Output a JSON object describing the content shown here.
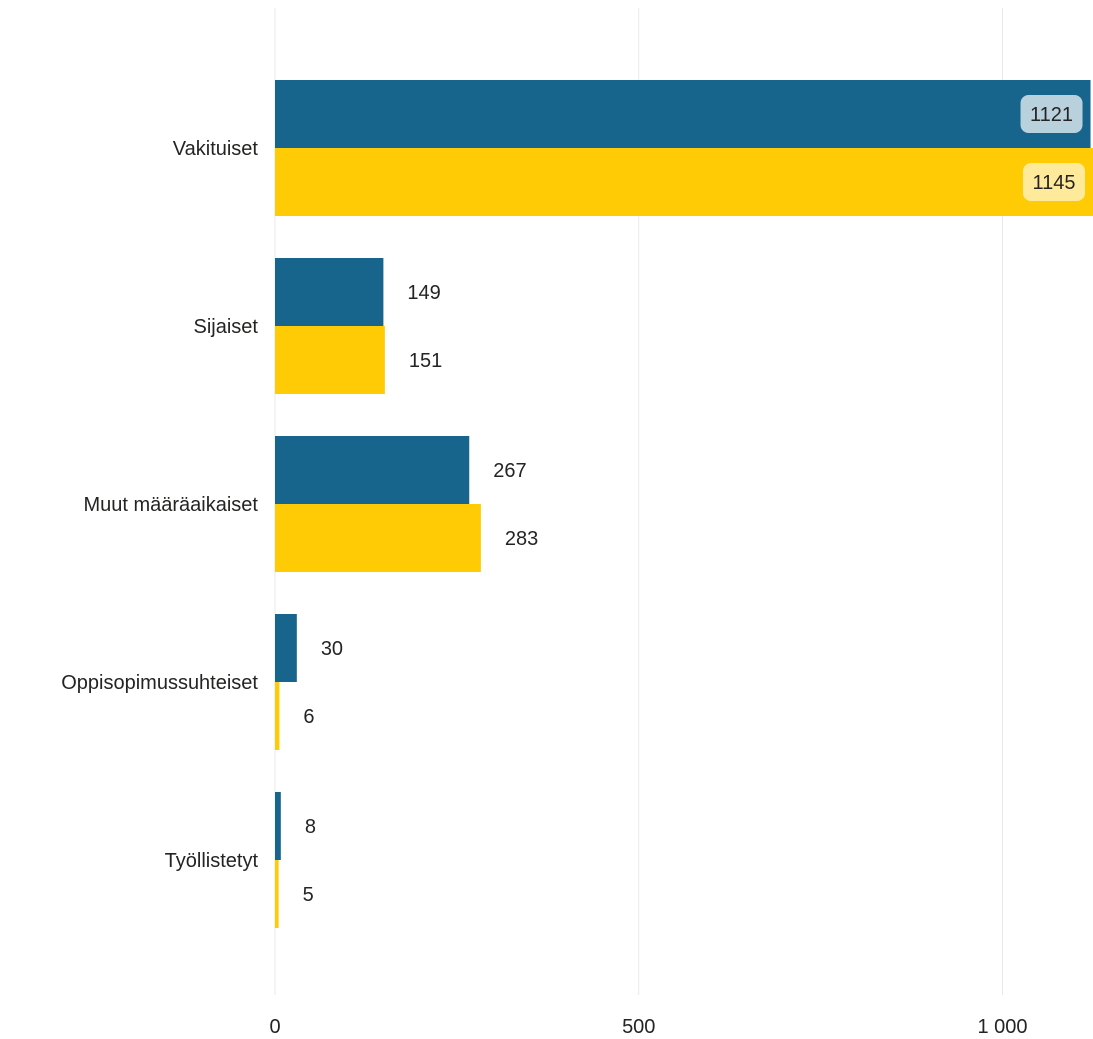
{
  "chart_data": {
    "type": "bar",
    "orientation": "horizontal",
    "categories": [
      "Vakituiset",
      "Sijaiset",
      "Muut määräaikaiset",
      "Oppisopimussuhteiset",
      "Työllistetyt"
    ],
    "series": [
      {
        "values": [
          1121,
          149,
          267,
          30,
          8
        ],
        "color": "#17648d"
      },
      {
        "values": [
          1145,
          151,
          283,
          6,
          5
        ],
        "color": "#ffcb05"
      }
    ],
    "xticks": [
      0,
      500,
      1000
    ],
    "xtick_labels": [
      "0",
      "500",
      "1 000"
    ],
    "xlim": [
      0,
      1125
    ],
    "grid": true,
    "data_labels": true,
    "title": "",
    "xlabel": "",
    "ylabel": ""
  }
}
